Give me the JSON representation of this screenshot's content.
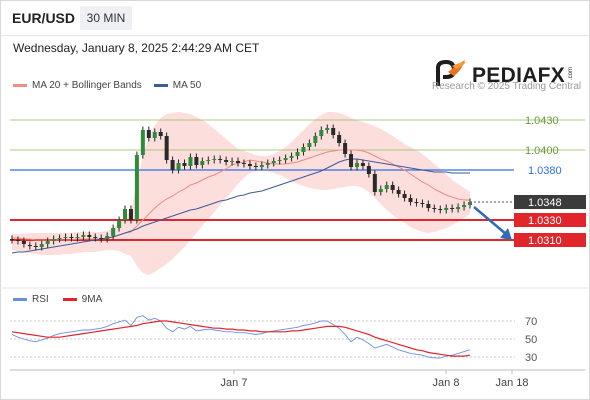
{
  "header": {
    "symbol": "EUR/USD",
    "timeframe": "30 MIN",
    "datetime": "Wednesday, January 8, 2025 2:44:29 AM CET"
  },
  "legend": {
    "bb_label": "MA 20 + Bollinger Bands",
    "ma50_label": "MA 50",
    "bb_color": "#f28b82",
    "ma50_color": "#3d5a99"
  },
  "rsi_legend": {
    "rsi_label": "RSI",
    "ma9_label": "9MA",
    "rsi_color": "#6a8fe0",
    "ma9_color": "#e0262b"
  },
  "branding": {
    "logo": "PEDIAFX",
    "logo_suffix": ".com",
    "copyright": "Research © 2025 Trading Central"
  },
  "chart_data": [
    {
      "type": "candlestick",
      "ylim": [
        1.027,
        1.045
      ],
      "levels": [
        {
          "value": 1.043,
          "label": "1.0430",
          "kind": "resistance-minor",
          "color": "#8fbf5a"
        },
        {
          "value": 1.04,
          "label": "1.0400",
          "kind": "resistance-minor",
          "color": "#8fbf5a"
        },
        {
          "value": 1.038,
          "label": "1.0380",
          "kind": "pivot",
          "color": "#2f6fe0"
        },
        {
          "value": 1.033,
          "label": "1.0330",
          "kind": "target",
          "color": "#e0262b"
        },
        {
          "value": 1.031,
          "label": "1.0310",
          "kind": "target",
          "color": "#e0262b"
        }
      ],
      "last_price": {
        "value": 1.0348,
        "label": "1.0348"
      },
      "x_ticks": [
        "Jan 7",
        "Jan 8",
        "Jan 18"
      ],
      "close": [
        1.031,
        1.0309,
        1.0306,
        1.0304,
        1.0303,
        1.0306,
        1.0309,
        1.0311,
        1.0312,
        1.0313,
        1.0312,
        1.0313,
        1.0315,
        1.0313,
        1.0312,
        1.0311,
        1.0314,
        1.0322,
        1.033,
        1.0341,
        1.033,
        1.0395,
        1.042,
        1.0412,
        1.0418,
        1.0414,
        1.039,
        1.038,
        1.0387,
        1.0384,
        1.0393,
        1.0385,
        1.0389,
        1.039,
        1.0391,
        1.039,
        1.0388,
        1.0389,
        1.0387,
        1.0386,
        1.0384,
        1.0383,
        1.0385,
        1.0387,
        1.0389,
        1.039,
        1.0392,
        1.0394,
        1.0398,
        1.0403,
        1.0407,
        1.0414,
        1.042,
        1.0422,
        1.0415,
        1.0407,
        1.0396,
        1.0383,
        1.0387,
        1.0384,
        1.0376,
        1.0358,
        1.0361,
        1.0365,
        1.036,
        1.0356,
        1.0352,
        1.0348,
        1.0347,
        1.0346,
        1.0342,
        1.0341,
        1.034,
        1.0342,
        1.0341,
        1.0343,
        1.0345,
        1.0348
      ],
      "open": [
        1.0311,
        1.031,
        1.0309,
        1.0305,
        1.0304,
        1.0303,
        1.0306,
        1.0309,
        1.0311,
        1.0312,
        1.0313,
        1.0312,
        1.0313,
        1.0315,
        1.0313,
        1.0312,
        1.0311,
        1.0314,
        1.0322,
        1.033,
        1.0341,
        1.033,
        1.0395,
        1.042,
        1.0412,
        1.0418,
        1.0414,
        1.039,
        1.038,
        1.0387,
        1.0384,
        1.0393,
        1.0385,
        1.0389,
        1.039,
        1.0391,
        1.039,
        1.0388,
        1.0389,
        1.0387,
        1.0386,
        1.0384,
        1.0383,
        1.0385,
        1.0387,
        1.0389,
        1.039,
        1.0392,
        1.0394,
        1.0398,
        1.0403,
        1.0407,
        1.0414,
        1.042,
        1.0422,
        1.0415,
        1.0407,
        1.0396,
        1.0383,
        1.0387,
        1.0384,
        1.0376,
        1.0358,
        1.0361,
        1.0365,
        1.036,
        1.0356,
        1.0352,
        1.0348,
        1.0347,
        1.0346,
        1.0342,
        1.0341,
        1.034,
        1.0342,
        1.0341,
        1.0343,
        1.0345
      ],
      "ma20": [
        1.0312,
        1.0312,
        1.0311,
        1.0311,
        1.031,
        1.031,
        1.031,
        1.031,
        1.031,
        1.031,
        1.031,
        1.0311,
        1.0311,
        1.0311,
        1.0311,
        1.0311,
        1.0312,
        1.0313,
        1.0315,
        1.0317,
        1.0318,
        1.0324,
        1.033,
        1.0336,
        1.0342,
        1.0347,
        1.0351,
        1.0354,
        1.0358,
        1.0361,
        1.0365,
        1.0367,
        1.037,
        1.0373,
        1.0375,
        1.0378,
        1.0381,
        1.0385,
        1.0387,
        1.0388,
        1.039,
        1.0389,
        1.0388,
        1.0387,
        1.0386,
        1.0386,
        1.0386,
        1.0387,
        1.0388,
        1.039,
        1.0392,
        1.0394,
        1.0396,
        1.0398,
        1.0399,
        1.04,
        1.04,
        1.04,
        1.04,
        1.0399,
        1.0397,
        1.0394,
        1.0391,
        1.0389,
        1.0386,
        1.0383,
        1.038,
        1.0376,
        1.0372,
        1.0368,
        1.0365,
        1.0361,
        1.0358,
        1.0355,
        1.0353,
        1.0351,
        1.035,
        1.035
      ],
      "bb_upper": [
        1.0316,
        1.0316,
        1.0316,
        1.0317,
        1.0317,
        1.0317,
        1.0317,
        1.0317,
        1.0317,
        1.0317,
        1.0317,
        1.0318,
        1.0318,
        1.0318,
        1.0318,
        1.0318,
        1.0319,
        1.0322,
        1.0327,
        1.0334,
        1.0338,
        1.0368,
        1.0395,
        1.0412,
        1.0425,
        1.0432,
        1.0436,
        1.0437,
        1.0438,
        1.0437,
        1.0436,
        1.0433,
        1.043,
        1.0426,
        1.0421,
        1.0416,
        1.0411,
        1.0406,
        1.0401,
        1.0399,
        1.0397,
        1.0395,
        1.0394,
        1.0394,
        1.0396,
        1.0399,
        1.0403,
        1.0408,
        1.0414,
        1.042,
        1.0426,
        1.0431,
        1.0435,
        1.0438,
        1.0438,
        1.0437,
        1.0435,
        1.0432,
        1.043,
        1.0428,
        1.0426,
        1.0424,
        1.0421,
        1.0418,
        1.0414,
        1.041,
        1.0406,
        1.0403,
        1.04,
        1.0396,
        1.0391,
        1.0386,
        1.0381,
        1.0376,
        1.037,
        1.0366,
        1.0362,
        1.0358
      ],
      "bb_lower": [
        1.03,
        1.0299,
        1.0298,
        1.0297,
        1.0296,
        1.0295,
        1.0295,
        1.0295,
        1.0295,
        1.0296,
        1.0296,
        1.0297,
        1.0298,
        1.0298,
        1.0298,
        1.0299,
        1.03,
        1.03,
        1.0299,
        1.0296,
        1.0294,
        1.0284,
        1.0277,
        1.0275,
        1.0278,
        1.0282,
        1.0286,
        1.0291,
        1.0297,
        1.0303,
        1.031,
        1.0317,
        1.0324,
        1.0331,
        1.0338,
        1.0345,
        1.0352,
        1.0359,
        1.0366,
        1.0372,
        1.0377,
        1.0379,
        1.038,
        1.0379,
        1.0377,
        1.0375,
        1.0372,
        1.0369,
        1.0366,
        1.0364,
        1.0362,
        1.0361,
        1.036,
        1.036,
        1.0361,
        1.0362,
        1.0363,
        1.0364,
        1.0364,
        1.0362,
        1.0358,
        1.0352,
        1.0346,
        1.034,
        1.0335,
        1.0331,
        1.0327,
        1.0323,
        1.032,
        1.0318,
        1.0317,
        1.0318,
        1.032,
        1.0322,
        1.0325,
        1.0328,
        1.0332,
        1.0336
      ],
      "ma50": [
        1.0297,
        1.0298,
        1.0298,
        1.0299,
        1.03,
        1.0301,
        1.0302,
        1.0303,
        1.0304,
        1.0305,
        1.0306,
        1.0307,
        1.0308,
        1.0309,
        1.031,
        1.0311,
        1.0312,
        1.0313,
        1.0315,
        1.0317,
        1.0319,
        1.0321,
        1.0324,
        1.0326,
        1.0328,
        1.033,
        1.0332,
        1.0334,
        1.0336,
        1.0338,
        1.034,
        1.0341,
        1.0343,
        1.0345,
        1.0347,
        1.0349,
        1.035,
        1.0352,
        1.0354,
        1.0355,
        1.0357,
        1.0358,
        1.0359,
        1.0361,
        1.0363,
        1.0365,
        1.0367,
        1.0369,
        1.0371,
        1.0373,
        1.0375,
        1.0377,
        1.0379,
        1.0382,
        1.0385,
        1.0388,
        1.039,
        1.0391,
        1.0391,
        1.039,
        1.0389,
        1.0388,
        1.0387,
        1.0386,
        1.0385,
        1.0384,
        1.0383,
        1.0382,
        1.0381,
        1.038,
        1.0379,
        1.0378,
        1.0378,
        1.0378,
        1.0377,
        1.0377,
        1.0377,
        1.0377
      ],
      "forecast": {
        "from": 1.0345,
        "to": 1.031
      }
    },
    {
      "type": "line",
      "name": "RSI panel",
      "ylim": [
        20,
        80
      ],
      "y_ticks": [
        70,
        50,
        30
      ],
      "series": [
        {
          "name": "RSI",
          "values": [
            55,
            52,
            50,
            48,
            47,
            49,
            51,
            54,
            56,
            57,
            58,
            59,
            60,
            60,
            61,
            62,
            64,
            67,
            69,
            71,
            65,
            74,
            76,
            71,
            73,
            70,
            62,
            58,
            63,
            61,
            64,
            59,
            60,
            61,
            60,
            59,
            58,
            58,
            57,
            57,
            56,
            55,
            56,
            58,
            59,
            60,
            61,
            62,
            63,
            65,
            66,
            68,
            70,
            70,
            66,
            62,
            55,
            47,
            52,
            49,
            45,
            40,
            42,
            44,
            41,
            38,
            36,
            34,
            33,
            32,
            30,
            29,
            29,
            31,
            32,
            34,
            36,
            38
          ]
        },
        {
          "name": "9MA",
          "values": [
            58,
            57,
            56,
            55,
            54,
            53,
            52,
            52,
            52,
            53,
            54,
            55,
            56,
            57,
            58,
            59,
            60,
            61,
            62,
            63,
            64,
            65,
            67,
            68,
            69,
            70,
            70,
            69,
            68,
            67,
            66,
            65,
            64,
            63,
            62,
            62,
            61,
            61,
            60,
            60,
            59,
            59,
            58,
            58,
            58,
            58,
            58,
            59,
            59,
            60,
            61,
            62,
            63,
            64,
            64,
            64,
            63,
            61,
            59,
            57,
            55,
            52,
            50,
            48,
            46,
            44,
            42,
            40,
            38,
            37,
            35,
            34,
            33,
            32,
            31,
            31,
            31,
            32
          ]
        }
      ]
    }
  ]
}
